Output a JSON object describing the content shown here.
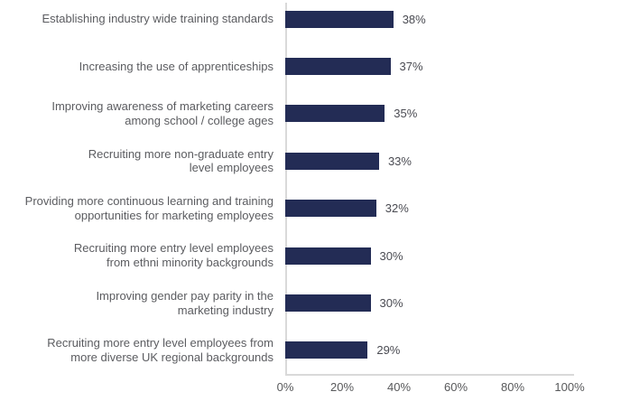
{
  "chart_data": {
    "type": "bar",
    "orientation": "horizontal",
    "title": "",
    "xlabel": "",
    "ylabel": "",
    "categories": [
      "Establishing industry wide training standards",
      "Increasing the use of apprenticeships",
      "Improving awareness of marketing careers\namong school / college ages",
      "Recruiting more non-graduate entry\nlevel employees",
      "Providing more continuous learning and training\nopportunities for marketing employees",
      "Recruiting more entry level employees\nfrom ethni minority backgrounds",
      "Improving gender pay parity in the\nmarketing industry",
      "Recruiting more entry level employees from\nmore diverse UK regional backgrounds"
    ],
    "values": [
      38,
      37,
      35,
      33,
      32,
      30,
      30,
      29
    ],
    "value_labels": [
      "38%",
      "37%",
      "35%",
      "33%",
      "32%",
      "30%",
      "30%",
      "29%"
    ],
    "xlim": [
      0,
      100
    ],
    "x_ticks": [
      "0%",
      "20%",
      "40%",
      "60%",
      "80%",
      "100%"
    ],
    "x_tick_values": [
      0,
      20,
      40,
      60,
      80,
      100
    ],
    "grid": false,
    "legend": false,
    "bar_color": "#232c55",
    "category_label_color": "#5b5c60",
    "value_label_color": "#4a4b52",
    "axis_line_color": "#d9d9d9",
    "tick_label_color": "#58595b"
  }
}
